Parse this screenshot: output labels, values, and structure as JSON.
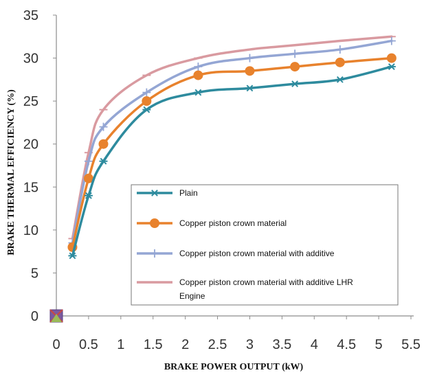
{
  "chart_data": {
    "type": "line",
    "xlabel": "BRAKE POWER OUTPUT (kW)",
    "ylabel": "BRAKE THERMAL EFFICIENCY  (%)",
    "xlim": [
      0,
      5.5
    ],
    "ylim": [
      0,
      35
    ],
    "xticks": [
      "0",
      "0.5",
      "1",
      "1.5",
      "2",
      "2.5",
      "3",
      "3.5",
      "4",
      "4.5",
      "5",
      "5.5"
    ],
    "yticks": [
      "0",
      "5",
      "10",
      "15",
      "20",
      "25",
      "30",
      "35"
    ],
    "x": [
      0.25,
      0.5,
      0.73,
      1.4,
      2.2,
      3.0,
      3.7,
      4.4,
      5.2
    ],
    "legend_position": "bottom-right inside plot",
    "grid": false,
    "series": [
      {
        "name": "Plain",
        "color": "#2e8b9e",
        "marker": "asterisk",
        "values": [
          7,
          14,
          18,
          24,
          26,
          26.5,
          27,
          27.5,
          29
        ]
      },
      {
        "name": "Copper  piston crown material",
        "color": "#e8822d",
        "marker": "circle",
        "values": [
          8,
          16,
          20,
          25,
          28,
          28.5,
          29,
          29.5,
          30
        ]
      },
      {
        "name": "Copper  piston crown material  with additive",
        "color": "#94a6d4",
        "marker": "plus",
        "values": [
          8.5,
          18,
          22,
          26,
          29,
          30,
          30.5,
          31,
          32
        ]
      },
      {
        "name": "Copper  piston crown material  with additive  LHR Engine",
        "legend_lines": [
          "Copper  piston crown material  with additive  LHR",
          "Engine"
        ],
        "color": "#d99aa0",
        "marker": "dash",
        "values": [
          9,
          19,
          24,
          28,
          30,
          31,
          31.5,
          32,
          32.5
        ]
      }
    ]
  }
}
